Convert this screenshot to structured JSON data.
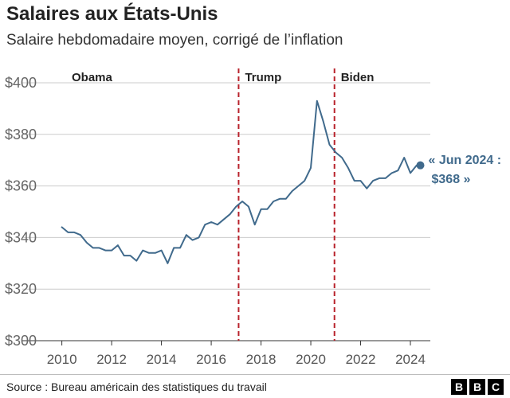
{
  "header": {
    "title": "Salaires aux États-Unis",
    "subtitle": "Salaire hebdomadaire moyen, corrigé de l’inflation"
  },
  "footer": {
    "source": "Source : Bureau américain des statistiques du travail",
    "logo_letters": [
      "B",
      "B",
      "C"
    ]
  },
  "chart_data": {
    "type": "line",
    "title": "Salaires aux États-Unis",
    "subtitle": "Salaire hebdomadaire moyen, corrigé de l’inflation",
    "xlabel": "",
    "ylabel": "",
    "xlim": [
      2009.5,
      2024.8
    ],
    "ylim": [
      300,
      400
    ],
    "x_ticks": [
      2010,
      2012,
      2014,
      2016,
      2018,
      2020,
      2022,
      2024
    ],
    "y_ticks": [
      300,
      320,
      340,
      360,
      380,
      400
    ],
    "y_tick_labels": [
      "$300",
      "$320",
      "$340",
      "$360",
      "$380",
      "$400"
    ],
    "grid": true,
    "line_color": "#406a8c",
    "series": [
      {
        "x": [
          2010.0,
          2010.25,
          2010.5,
          2010.75,
          2011.0,
          2011.25,
          2011.5,
          2011.75,
          2012.0,
          2012.25,
          2012.5,
          2012.75,
          2013.0,
          2013.25,
          2013.5,
          2013.75,
          2014.0,
          2014.25,
          2014.5,
          2014.75,
          2015.0,
          2015.25,
          2015.5,
          2015.75,
          2016.0,
          2016.25,
          2016.5,
          2016.75,
          2017.0,
          2017.25,
          2017.5,
          2017.75,
          2018.0,
          2018.25,
          2018.5,
          2018.75,
          2019.0,
          2019.25,
          2019.5,
          2019.75,
          2020.0,
          2020.25,
          2020.5,
          2020.75,
          2021.0,
          2021.25,
          2021.5,
          2021.75,
          2022.0,
          2022.25,
          2022.5,
          2022.75,
          2023.0,
          2023.25,
          2023.5,
          2023.75,
          2024.0,
          2024.25
        ],
        "values": [
          344,
          342,
          342,
          341,
          338,
          336,
          336,
          335,
          335,
          337,
          333,
          333,
          331,
          335,
          334,
          334,
          335,
          330,
          336,
          336,
          341,
          339,
          340,
          345,
          346,
          345,
          347,
          349,
          352,
          354,
          352,
          345,
          351,
          351,
          354,
          355,
          355,
          358,
          360,
          362,
          367,
          393,
          385,
          376,
          373,
          371,
          367,
          362,
          362,
          359,
          362,
          363,
          363,
          365,
          366,
          371,
          365,
          368
        ]
      }
    ],
    "periods": [
      {
        "label": "Obama",
        "start": 2009.5
      },
      {
        "label": "Trump",
        "start": 2017.1
      },
      {
        "label": "Biden",
        "start": 2020.95
      }
    ],
    "annotation": {
      "x": 2024.4,
      "y": 368,
      "lines": [
        "« Jun 2024 :",
        "$368 »"
      ]
    }
  }
}
